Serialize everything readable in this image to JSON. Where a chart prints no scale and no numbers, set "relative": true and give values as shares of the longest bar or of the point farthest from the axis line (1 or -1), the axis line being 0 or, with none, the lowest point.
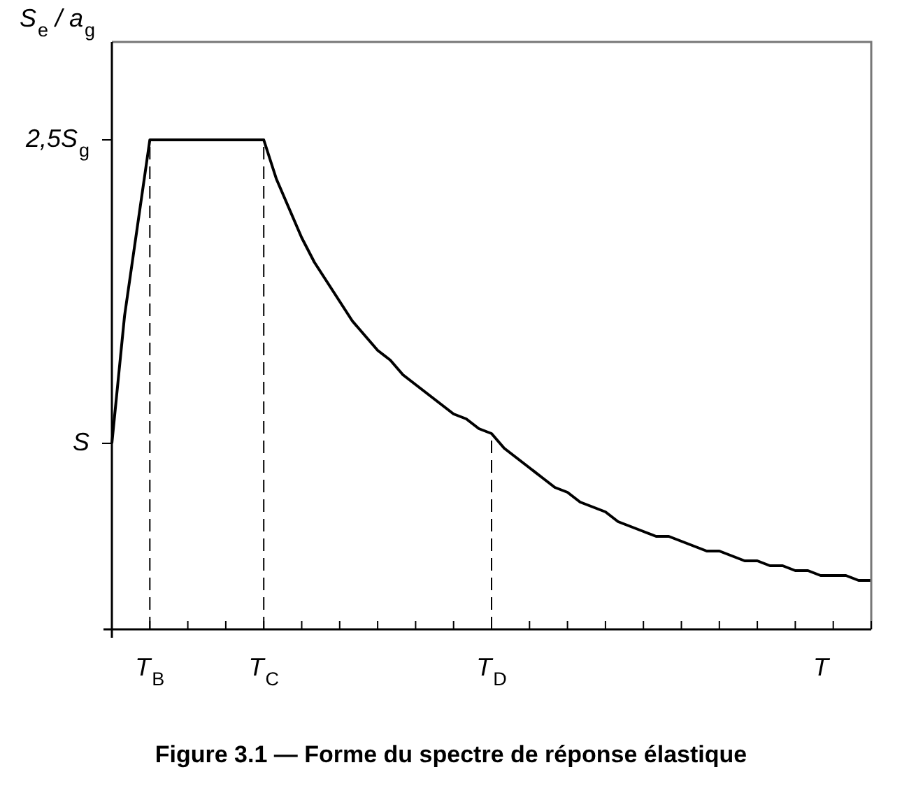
{
  "chart_data": {
    "type": "line",
    "title": "Figure 3.1 — Forme du spectre de réponse élastique",
    "xlabel": "T",
    "ylabel": "S$_{e}$ / a$_{g}$",
    "relative": true,
    "categories": [
      null,
      null,
      null,
      "T$_{B}$",
      null,
      null,
      null,
      null,
      null,
      null,
      null,
      null,
      "T$_{C}$",
      null,
      null,
      null,
      null,
      null,
      null,
      null,
      null,
      null,
      null,
      null,
      null,
      null,
      null,
      null,
      null,
      null,
      "T$_{D}$",
      null,
      null,
      null,
      null,
      null,
      null,
      null,
      null,
      null,
      null,
      null,
      null,
      null,
      null,
      null,
      null,
      null,
      null,
      null,
      null,
      null,
      null,
      null,
      null,
      null,
      null,
      null,
      null,
      null,
      null
    ],
    "series": [
      {
        "color": "#000000",
        "values": [
          0.38,
          0.64,
          0.82,
          1,
          1,
          1,
          1,
          1,
          1,
          1,
          1,
          1,
          1,
          0.92,
          0.86,
          0.8,
          0.75,
          0.71,
          0.67,
          0.63,
          0.6,
          0.57,
          0.55,
          0.52,
          0.5,
          0.48,
          0.46,
          0.44,
          0.43,
          0.41,
          0.4,
          0.37,
          0.35,
          0.33,
          0.31,
          0.29,
          0.28,
          0.26,
          0.25,
          0.24,
          0.22,
          0.21,
          0.2,
          0.19,
          0.19,
          0.18,
          0.17,
          0.16,
          0.16,
          0.15,
          0.14,
          0.14,
          0.13,
          0.13,
          0.12,
          0.12,
          0.11,
          0.11,
          0.11,
          0.1,
          0.1
        ]
      }
    ],
    "annotations": [
      "S",
      "2,5S$_{g}$"
    ],
    "ref_lines": [
      {
        "axis": "x",
        "value": "T$_{B}$",
        "line_style": "dashed"
      },
      {
        "axis": "x",
        "value": "T$_{C}$",
        "line_style": "dashed"
      },
      {
        "axis": "x",
        "value": "T$_{D}$",
        "line_style": "dashed"
      }
    ],
    "legend": false,
    "marker": "none",
    "line_style": "solid"
  }
}
